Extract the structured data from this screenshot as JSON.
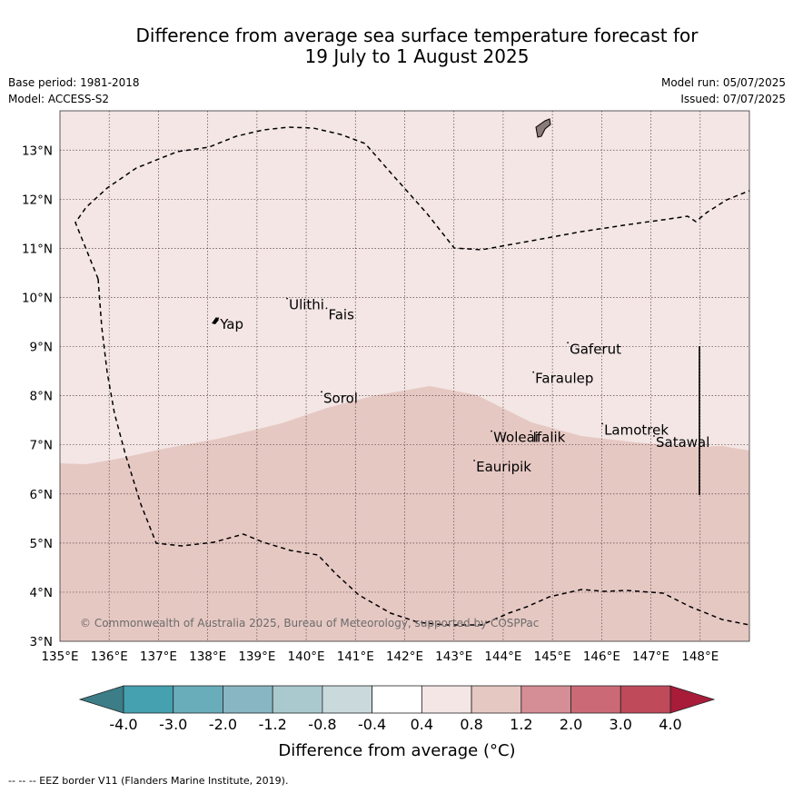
{
  "title": {
    "line1": "Difference from average sea surface temperature forecast for",
    "line2": "19 July to 1 August 2025"
  },
  "meta": {
    "base_period": "Base period: 1981-2018",
    "model": "Model: ACCESS-S2",
    "model_run": "Model run: 05/07/2025",
    "issued": "Issued: 07/07/2025"
  },
  "map": {
    "lon_range": [
      135,
      149
    ],
    "lat_range": [
      3,
      13.8
    ],
    "x_ticks": [
      "135°E",
      "136°E",
      "137°E",
      "138°E",
      "139°E",
      "140°E",
      "141°E",
      "142°E",
      "143°E",
      "144°E",
      "145°E",
      "146°E",
      "147°E",
      "148°E"
    ],
    "y_ticks": [
      "3°N",
      "4°N",
      "5°N",
      "6°N",
      "7°N",
      "8°N",
      "9°N",
      "10°N",
      "11°N",
      "12°N",
      "13°N"
    ],
    "places": [
      {
        "name": "Yap",
        "lon": 138.25,
        "lat": 9.45
      },
      {
        "name": "Ulithi",
        "lon": 139.65,
        "lat": 9.85
      },
      {
        "name": "Fais",
        "lon": 140.45,
        "lat": 9.65
      },
      {
        "name": "Gaferut",
        "lon": 145.35,
        "lat": 8.95
      },
      {
        "name": "Faraulep",
        "lon": 144.65,
        "lat": 8.35
      },
      {
        "name": "Sorol",
        "lon": 140.35,
        "lat": 7.95
      },
      {
        "name": "Woleai",
        "lon": 143.8,
        "lat": 7.15
      },
      {
        "name": "Ifalik",
        "lon": 144.6,
        "lat": 7.15
      },
      {
        "name": "Lamotrek",
        "lon": 146.05,
        "lat": 7.3
      },
      {
        "name": "Satawal",
        "lon": 147.1,
        "lat": 7.05
      },
      {
        "name": "Eauripik",
        "lon": 143.45,
        "lat": 6.55
      }
    ],
    "copyright": "© Commonwealth of Australia 2025, Bureau of Meteorology, supported by COSPPac",
    "anomaly_colors": {
      "0.4_to_0.8": "#f3e6e5",
      "0.8_to_1.2": "#e6c8c3"
    },
    "eez_style": "dashed black"
  },
  "colorbar": {
    "ticks": [
      "-4.0",
      "-3.0",
      "-2.0",
      "-1.2",
      "-0.8",
      "-0.4",
      "0.4",
      "0.8",
      "1.2",
      "2.0",
      "3.0",
      "4.0"
    ],
    "colors": [
      "#45a0b0",
      "#69adbb",
      "#88b6c2",
      "#a9c9cf",
      "#c9d9dc",
      "#ffffff",
      "#f3e6e5",
      "#e6c8c3",
      "#d58e95",
      "#cb6a76",
      "#bf4a5a"
    ],
    "extend_low": "#3c7d87",
    "extend_high": "#a81c3a",
    "label": "Difference from average (°C)"
  },
  "footer": "--  --  -- EEZ border V11 (Flanders Marine Institute, 2019)."
}
